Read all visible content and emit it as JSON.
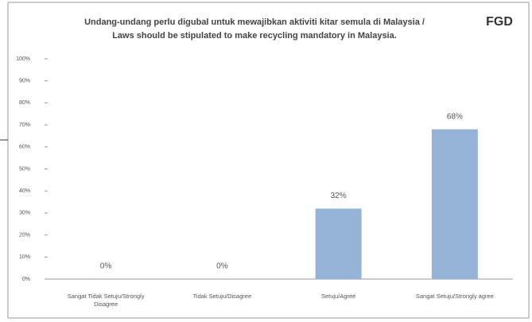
{
  "chart_data": {
    "type": "bar",
    "title": [
      "Undang-undang perlu digubal untuk mewajibkan aktiviti kitar semula di Malaysia /",
      "Laws should be stipulated to make recycling mandatory in Malaysia."
    ],
    "annotation": "FGD",
    "categories": [
      "Sangat Tidak Setuju/Strongly Disagree",
      "Tidak Setuju/Disagree",
      "Setuju/Agree",
      "Sangat Setuju/Strongly agree"
    ],
    "values": [
      0,
      0,
      32,
      68
    ],
    "value_labels": [
      "0%",
      "0%",
      "32%",
      "68%"
    ],
    "color": "#95b3d7",
    "ylim": [
      0,
      100
    ],
    "yticks": [
      {
        "value": 0,
        "label": "0%"
      },
      {
        "value": 10,
        "label": "10%"
      },
      {
        "value": 20,
        "label": "20%"
      },
      {
        "value": 30,
        "label": "30%"
      },
      {
        "value": 40,
        "label": "40%"
      },
      {
        "value": 50,
        "label": "50%"
      },
      {
        "value": 60,
        "label": "60%"
      },
      {
        "value": 70,
        "label": "70%"
      },
      {
        "value": 80,
        "label": "80%"
      },
      {
        "value": 90,
        "label": "90%"
      },
      {
        "value": 100,
        "label": "100%"
      }
    ],
    "grid": false
  }
}
